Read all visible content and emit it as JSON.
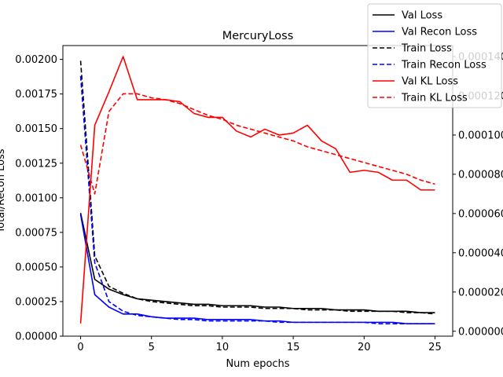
{
  "chart_data": {
    "type": "line",
    "title": "MercuryLoss",
    "xlabel": "Num epochs",
    "ylabel": "Total/Recon Loss",
    "xlim": [
      -1.25,
      26.25
    ],
    "ylim": [
      0,
      0.0021
    ],
    "y2lim": [
      -2.5e-06,
      0.0001456
    ],
    "x_ticks": [
      0,
      5,
      10,
      15,
      20,
      25
    ],
    "x_tick_labels": [
      "0",
      "5",
      "10",
      "15",
      "20",
      "25"
    ],
    "y_ticks": [
      0,
      0.00025,
      0.0005,
      0.00075,
      0.001,
      0.00125,
      0.0015,
      0.00175,
      0.002
    ],
    "y_tick_labels": [
      "0.00000",
      "0.00025",
      "0.00050",
      "0.00075",
      "0.00100",
      "0.00125",
      "0.00150",
      "0.00175",
      "0.00200"
    ],
    "y2_ticks": [
      0,
      2e-05,
      4e-05,
      6e-05,
      8e-05,
      0.0001,
      0.00012,
      0.00014
    ],
    "y2_tick_labels": [
      "0.000000",
      "0.000020",
      "0.000040",
      "0.000060",
      "0.000080",
      "0.000100",
      "0.000120",
      "0.000140"
    ],
    "grid": false,
    "legend_position": "upper-right",
    "x": [
      0,
      1,
      2,
      3,
      4,
      5,
      6,
      7,
      8,
      9,
      10,
      11,
      12,
      13,
      14,
      15,
      16,
      17,
      18,
      19,
      20,
      21,
      22,
      23,
      24,
      25
    ],
    "series": [
      {
        "name": "Val Loss",
        "axis": "left",
        "color": "#000000",
        "dash": "solid",
        "values": [
          0.00089,
          0.00041,
          0.00034,
          0.0003,
          0.00027,
          0.00026,
          0.00025,
          0.00024,
          0.00023,
          0.00023,
          0.00022,
          0.00022,
          0.00022,
          0.00021,
          0.00021,
          0.0002,
          0.0002,
          0.0002,
          0.00019,
          0.00019,
          0.00019,
          0.00018,
          0.00018,
          0.00018,
          0.00017,
          0.00017
        ]
      },
      {
        "name": "Val Recon Loss",
        "axis": "left",
        "color": "#0000ff",
        "dash": "solid",
        "values": [
          0.00088,
          0.0003,
          0.00021,
          0.00016,
          0.00016,
          0.00014,
          0.00013,
          0.00013,
          0.00013,
          0.00012,
          0.00012,
          0.00012,
          0.00012,
          0.00011,
          0.00011,
          0.0001,
          0.0001,
          0.0001,
          0.0001,
          0.0001,
          0.0001,
          0.0001,
          0.0001,
          9e-05,
          9e-05,
          9e-05
        ]
      },
      {
        "name": "Train Loss",
        "axis": "left",
        "color": "#000000",
        "dash": "dashed",
        "values": [
          0.00199,
          0.00058,
          0.00036,
          0.00031,
          0.00027,
          0.00025,
          0.00024,
          0.00023,
          0.00022,
          0.00022,
          0.00021,
          0.00021,
          0.00021,
          0.0002,
          0.0002,
          0.0002,
          0.00019,
          0.00019,
          0.00019,
          0.00018,
          0.00018,
          0.00018,
          0.00018,
          0.00017,
          0.00017,
          0.00016
        ]
      },
      {
        "name": "Train Recon Loss",
        "axis": "left",
        "color": "#0000ff",
        "dash": "dashed",
        "values": [
          0.00188,
          0.00053,
          0.00025,
          0.00018,
          0.00015,
          0.00014,
          0.00013,
          0.00012,
          0.00012,
          0.00011,
          0.00011,
          0.00011,
          0.00011,
          0.00011,
          0.0001,
          0.0001,
          0.0001,
          0.0001,
          0.0001,
          0.0001,
          0.0001,
          9e-05,
          9e-05,
          9e-05,
          9e-05,
          9e-05
        ]
      },
      {
        "name": "Val KL Loss",
        "axis": "right",
        "color": "#ff0000",
        "dash": "solid",
        "values": [
          4e-06,
          0.000105,
          0.000122,
          0.00014,
          0.000118,
          0.000118,
          0.000118,
          0.000117,
          0.000111,
          0.000109,
          0.000109,
          0.000102,
          9.9e-05,
          0.000103,
          0.0001,
          0.000101,
          0.000105,
          9.7e-05,
          9.3e-05,
          8.1e-05,
          8.2e-05,
          8.1e-05,
          7.7e-05,
          7.7e-05,
          7.2e-05,
          7.2e-05
        ]
      },
      {
        "name": "Train KL Loss",
        "axis": "right",
        "color": "#ff0000",
        "dash": "dashed",
        "values": [
          9.5e-05,
          7e-05,
          0.000112,
          0.000121,
          0.000121,
          0.000119,
          0.000118,
          0.000116,
          0.000113,
          0.00011,
          0.000108,
          0.000105,
          0.000103,
          0.000101,
          9.9e-05,
          9.7e-05,
          9.4e-05,
          9.2e-05,
          9e-05,
          8.8e-05,
          8.6e-05,
          8.4e-05,
          8.2e-05,
          8e-05,
          7.7e-05,
          7.5e-05
        ]
      }
    ]
  }
}
